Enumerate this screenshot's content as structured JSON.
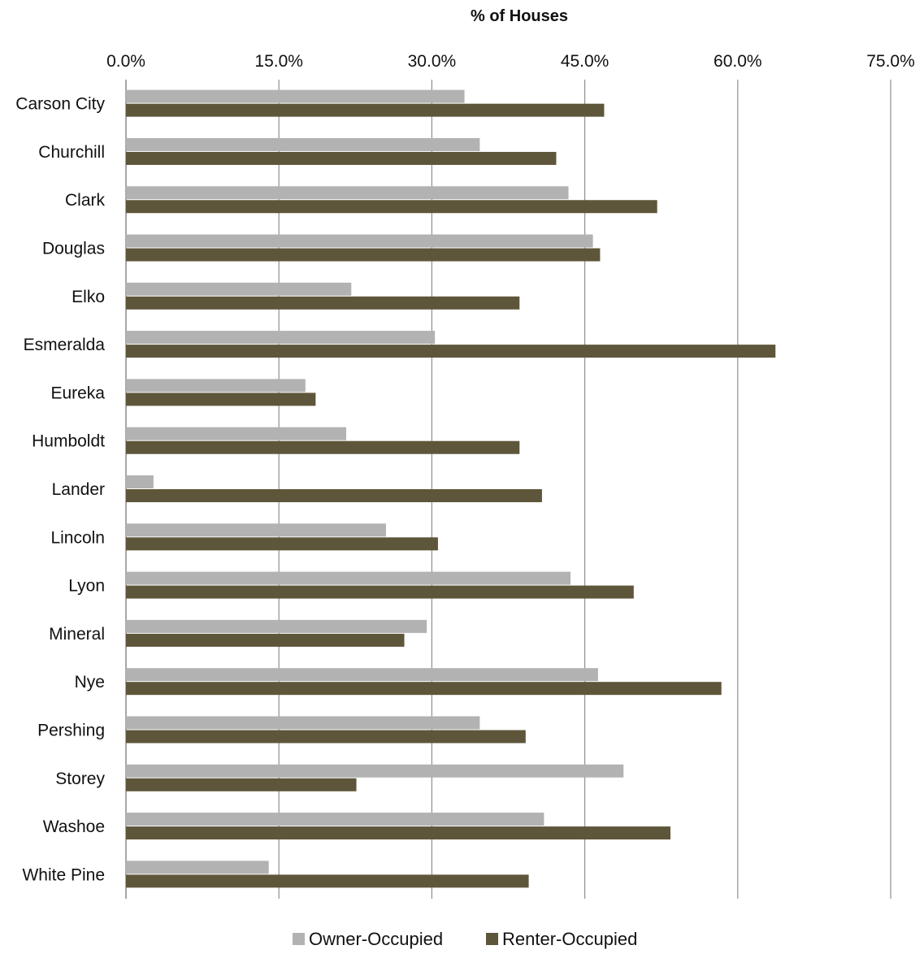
{
  "chart_data": {
    "type": "bar",
    "orientation": "horizontal",
    "xlabel": "% of Houses",
    "xlim": [
      0,
      75
    ],
    "ticks": [
      "0.0%",
      "15.0%",
      "30.0%",
      "45.0%",
      "60.0%",
      "75.0%"
    ],
    "tick_values": [
      0,
      15,
      30,
      45,
      60,
      75
    ],
    "grid": true,
    "legend_position": "bottom",
    "categories": [
      "Carson City",
      "Churchill",
      "Clark",
      "Douglas",
      "Elko",
      "Esmeralda",
      "Eureka",
      "Humboldt",
      "Lander",
      "Lincoln",
      "Lyon",
      "Mineral",
      "Nye",
      "Pershing",
      "Storey",
      "Washoe",
      "White Pine"
    ],
    "series": [
      {
        "name": "Owner-Occupied",
        "color": "#b2b2b2",
        "values": [
          33.2,
          34.7,
          43.4,
          45.8,
          22.1,
          30.3,
          17.6,
          21.6,
          2.7,
          25.5,
          43.6,
          29.5,
          46.3,
          34.7,
          48.8,
          41.0,
          14.0
        ]
      },
      {
        "name": "Renter-Occupied",
        "color": "#5e563a",
        "values": [
          46.9,
          42.2,
          52.1,
          46.5,
          38.6,
          63.7,
          18.6,
          38.6,
          40.8,
          30.6,
          49.8,
          27.3,
          58.4,
          39.2,
          22.6,
          53.4,
          39.5
        ]
      }
    ]
  }
}
